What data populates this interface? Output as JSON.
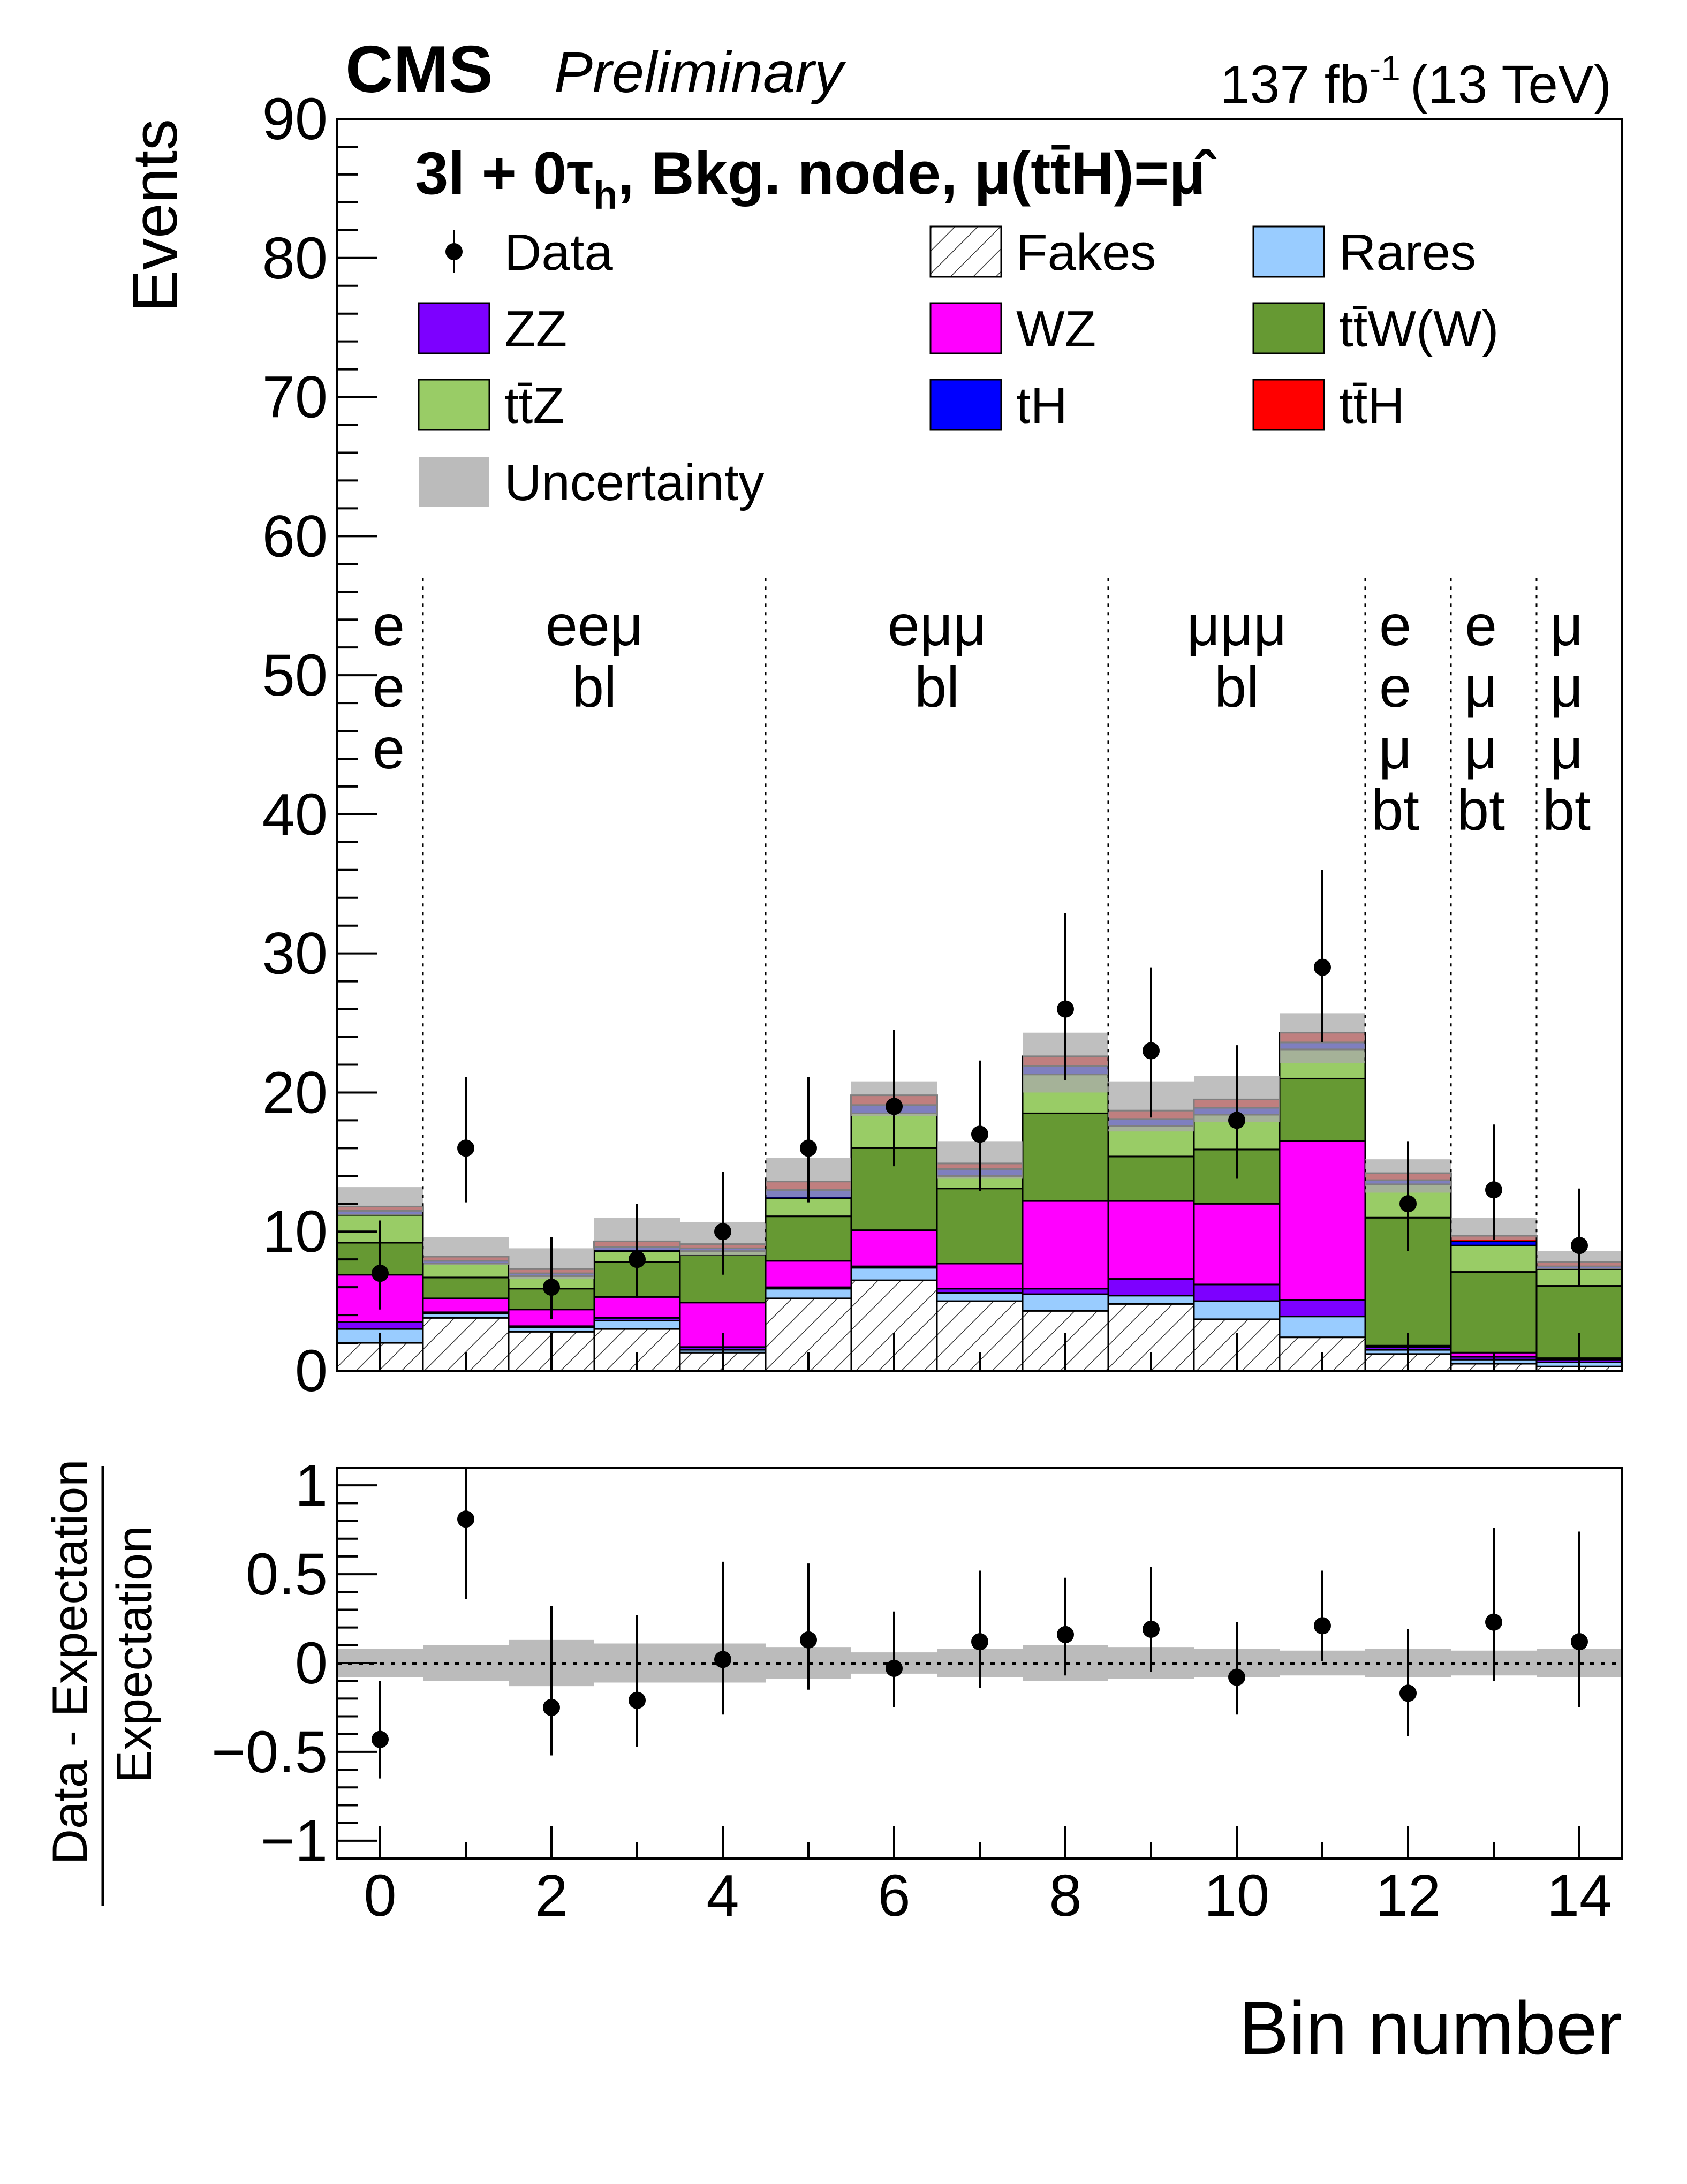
{
  "header": {
    "experiment": "CMS",
    "status": "Preliminary",
    "lumi_value": "137 fb",
    "lumi_exp": "-1",
    "energy": "(13 TeV)"
  },
  "main_panel": {
    "title_prefix": "3l + 0τ",
    "title_sub": "h",
    "title_suffix": ", Bkg. node,  μ(tt̄H)=μ̂",
    "ylabel": "Events",
    "ylim": [
      0,
      90
    ],
    "yticks": [
      "0",
      "10",
      "20",
      "30",
      "40",
      "50",
      "60",
      "70",
      "80",
      "90"
    ]
  },
  "ratio_panel": {
    "ylabel_num": "Data - Expectation",
    "ylabel_den": "Expectation",
    "ylim": [
      -1.1,
      1.1
    ],
    "yticks": [
      "−1",
      "−0.5",
      "0",
      "0.5",
      "1"
    ],
    "ytick_values": [
      -1,
      -0.5,
      0,
      0.5,
      1
    ]
  },
  "xaxis": {
    "label": "Bin number",
    "xlim": [
      -0.5,
      14.5
    ],
    "ticks": [
      "0",
      "2",
      "4",
      "6",
      "8",
      "10",
      "12",
      "14"
    ],
    "tick_values": [
      0,
      2,
      4,
      6,
      8,
      10,
      12,
      14
    ]
  },
  "legend": [
    {
      "name": "Data",
      "type": "marker"
    },
    {
      "name": "Fakes",
      "type": "hatch"
    },
    {
      "name": "Rares",
      "color": "#99ccff"
    },
    {
      "name": "ZZ",
      "color": "#7d00ff"
    },
    {
      "name": "WZ",
      "color": "#ff00ff"
    },
    {
      "name": "tt̄W(W)",
      "color": "#669933"
    },
    {
      "name": "tt̄Z",
      "color": "#99cc66"
    },
    {
      "name": "tH",
      "color": "#0000ff"
    },
    {
      "name": "tt̄H",
      "color": "#ff0000"
    },
    {
      "name": "Uncertainty",
      "color": "#bbbbbb"
    }
  ],
  "category_labels": [
    {
      "lines": [
        "e",
        "e",
        "e"
      ]
    },
    {
      "lines": [
        "eeμ",
        "bl"
      ]
    },
    {
      "lines": [
        "eμμ",
        "bl"
      ]
    },
    {
      "lines": [
        "μμμ",
        "bl"
      ]
    },
    {
      "lines": [
        "e",
        "e",
        "μ",
        "bt"
      ]
    },
    {
      "lines": [
        "e",
        "μ",
        "μ",
        "bt"
      ]
    },
    {
      "lines": [
        "μ",
        "μ",
        "μ",
        "bt"
      ]
    }
  ],
  "chart_data": {
    "type": "bar",
    "stacked": true,
    "x": [
      0,
      1,
      2,
      3,
      4,
      5,
      6,
      7,
      8,
      9,
      10,
      11,
      12,
      13,
      14
    ],
    "category_boundaries": [
      0.5,
      4.5,
      8.5,
      11.5,
      12.5,
      13.5
    ],
    "series": [
      {
        "name": "Fakes",
        "values": [
          2.0,
          3.8,
          2.8,
          3.0,
          1.3,
          5.2,
          6.5,
          5.0,
          4.3,
          4.8,
          3.7,
          2.4,
          1.2,
          0.5,
          0.3
        ]
      },
      {
        "name": "Rares",
        "values": [
          1.0,
          0.3,
          0.3,
          0.6,
          0.2,
          0.7,
          0.9,
          0.6,
          1.2,
          0.6,
          1.3,
          1.5,
          0.3,
          0.3,
          0.3
        ]
      },
      {
        "name": "ZZ",
        "values": [
          0.5,
          0.1,
          0.1,
          0.2,
          0.2,
          0.1,
          0.1,
          0.3,
          0.4,
          1.2,
          1.2,
          1.2,
          0.2,
          0.2,
          0.2
        ]
      },
      {
        "name": "WZ",
        "values": [
          3.4,
          1.0,
          1.2,
          1.5,
          3.2,
          1.9,
          2.6,
          1.8,
          6.3,
          5.6,
          5.8,
          11.4,
          0.1,
          0.3,
          0.1
        ]
      },
      {
        "name": "tt̄W(W)",
        "values": [
          2.3,
          1.5,
          1.5,
          2.5,
          3.4,
          3.2,
          5.9,
          5.4,
          6.3,
          3.2,
          3.9,
          4.5,
          9.2,
          5.8,
          5.2
        ]
      },
      {
        "name": "tt̄Z",
        "values": [
          2.0,
          1.0,
          0.9,
          0.8,
          0.3,
          1.3,
          2.5,
          0.9,
          2.8,
          2.2,
          2.5,
          2.1,
          2.4,
          1.9,
          1.2
        ]
      },
      {
        "name": "tH",
        "values": [
          0.3,
          0.2,
          0.2,
          0.3,
          0.2,
          0.6,
          0.6,
          0.5,
          0.6,
          0.5,
          0.5,
          0.5,
          0.3,
          0.3,
          0.2
        ]
      },
      {
        "name": "tt̄H",
        "values": [
          0.3,
          0.3,
          0.3,
          0.4,
          0.3,
          0.6,
          0.7,
          0.4,
          0.7,
          0.6,
          0.6,
          0.7,
          0.5,
          0.4,
          0.3
        ]
      }
    ],
    "uncertainty_band": {
      "lo": [
        11.2,
        7.6,
        6.6,
        8.7,
        8.3,
        12.5,
        18.3,
        13.8,
        20.0,
        17.2,
        17.9,
        22.1,
        12.8,
        9.4,
        7.3
      ],
      "hi": [
        13.2,
        9.6,
        8.8,
        11.0,
        10.7,
        15.3,
        20.8,
        16.5,
        24.3,
        20.8,
        21.2,
        25.7,
        15.2,
        11.0,
        8.6
      ]
    },
    "data": {
      "values": [
        7,
        16,
        6,
        8,
        10,
        16,
        19,
        17,
        26,
        23,
        18,
        29,
        12,
        13,
        9
      ],
      "err_lo": [
        2.6,
        3.9,
        2.3,
        2.8,
        3.1,
        3.9,
        4.3,
        4.1,
        5.1,
        4.8,
        4.2,
        5.4,
        3.4,
        3.6,
        2.9
      ],
      "err_hi": [
        3.8,
        5.1,
        3.6,
        4.0,
        4.3,
        5.1,
        5.5,
        5.3,
        6.9,
        6.0,
        5.4,
        7.0,
        4.5,
        4.7,
        4.1
      ]
    },
    "ratio": {
      "values": [
        -0.43,
        0.81,
        -0.25,
        -0.21,
        0.02,
        0.13,
        -0.03,
        0.12,
        0.16,
        0.19,
        -0.08,
        0.21,
        -0.17,
        0.23,
        0.12
      ],
      "err_lo": [
        0.22,
        0.45,
        0.27,
        0.26,
        0.31,
        0.28,
        0.22,
        0.26,
        0.23,
        0.24,
        0.21,
        0.2,
        0.24,
        0.33,
        0.37
      ],
      "err_hi": [
        0.33,
        0.59,
        0.57,
        0.48,
        0.55,
        0.43,
        0.32,
        0.4,
        0.32,
        0.35,
        0.31,
        0.31,
        0.36,
        0.53,
        0.62
      ],
      "band_halfwidth": [
        0.08,
        0.1,
        0.13,
        0.11,
        0.11,
        0.09,
        0.06,
        0.08,
        0.1,
        0.09,
        0.08,
        0.07,
        0.08,
        0.07,
        0.08
      ]
    },
    "xlabel": "Bin number",
    "ylabel": "Events",
    "ylim": [
      0,
      90
    ]
  }
}
